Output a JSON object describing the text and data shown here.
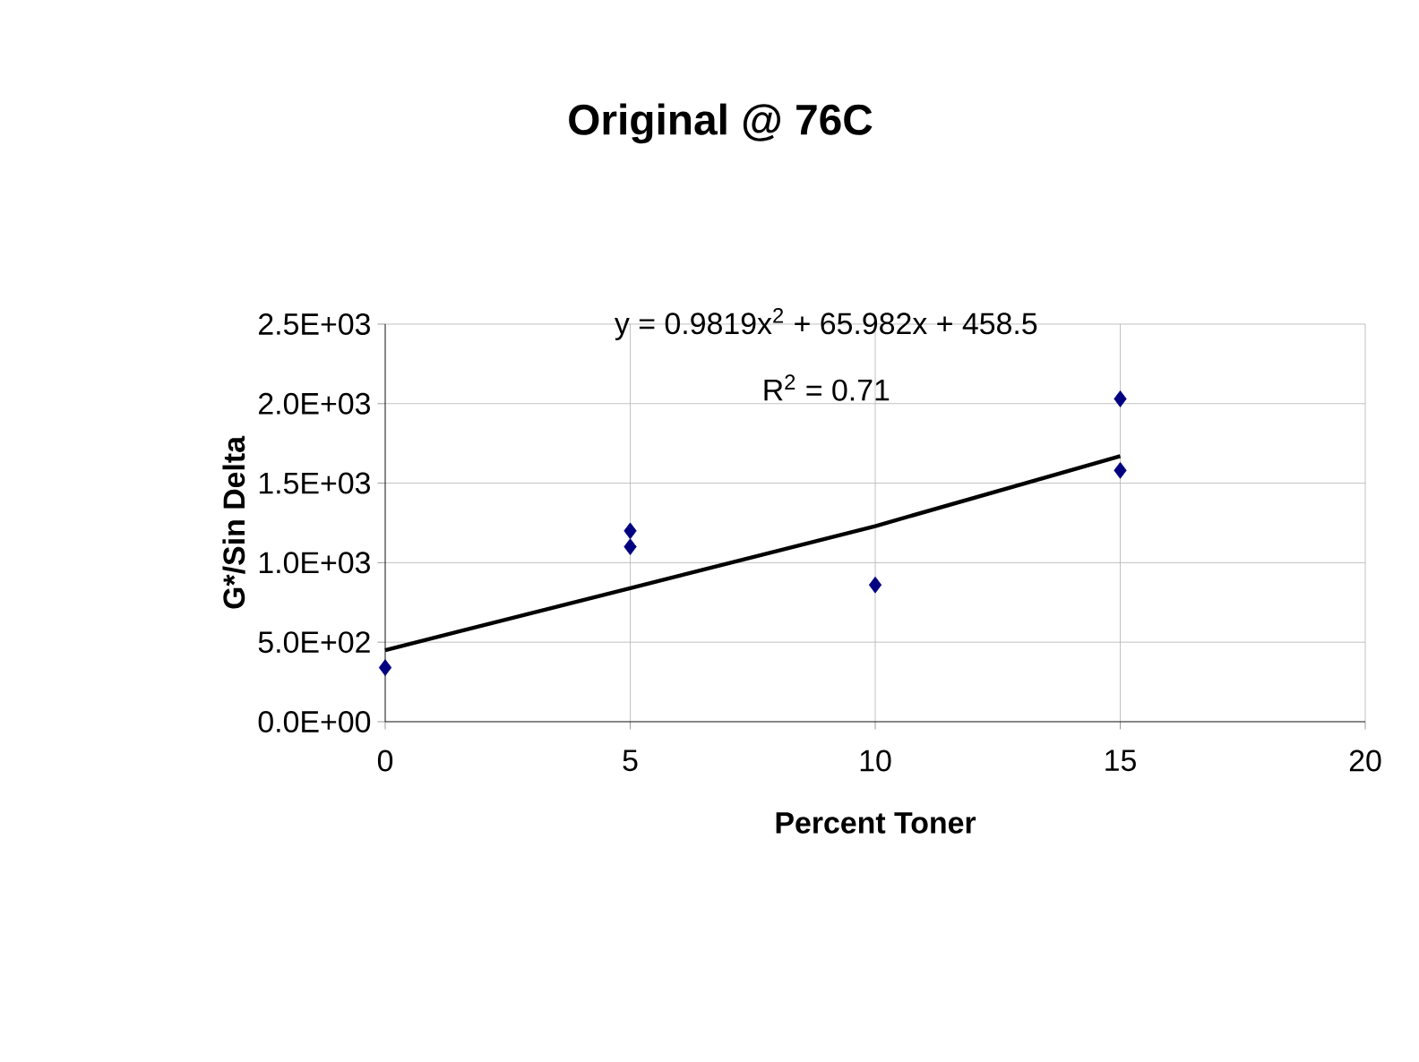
{
  "chart_data": {
    "type": "scatter",
    "title": "Original @ 76C",
    "xlabel": "Percent Toner",
    "ylabel": "G*/Sin Delta",
    "annotations": [
      "y = 0.9819x$^{2}$ + 65.982x + 458.5",
      "R$^{2}$ = 0.71"
    ],
    "x": [
      0,
      5,
      5,
      10,
      15,
      15
    ],
    "series": [
      {
        "color": "#000080",
        "marker": "diamond",
        "values": [
          340,
          1200,
          1100,
          860,
          2030,
          1580
        ]
      },
      {
        "type": "line",
        "color": "#000000",
        "marker": "none",
        "x": [
          0,
          5,
          10,
          15
        ],
        "values": [
          450,
          840,
          1230,
          1670
        ]
      }
    ],
    "xlim": [
      0,
      20
    ],
    "xticks": [
      0,
      5,
      10,
      15,
      20
    ],
    "ylim": [
      0,
      2500
    ],
    "yticks": [
      {
        "value": 0,
        "label": "0.0E+00"
      },
      {
        "value": 500,
        "label": "5.0E+02"
      },
      {
        "value": 1000,
        "label": "1.0E+03"
      },
      {
        "value": 1500,
        "label": "1.5E+03"
      },
      {
        "value": 2000,
        "label": "2.0E+03"
      },
      {
        "value": 2500,
        "label": "2.5E+03"
      }
    ],
    "grid": true
  }
}
